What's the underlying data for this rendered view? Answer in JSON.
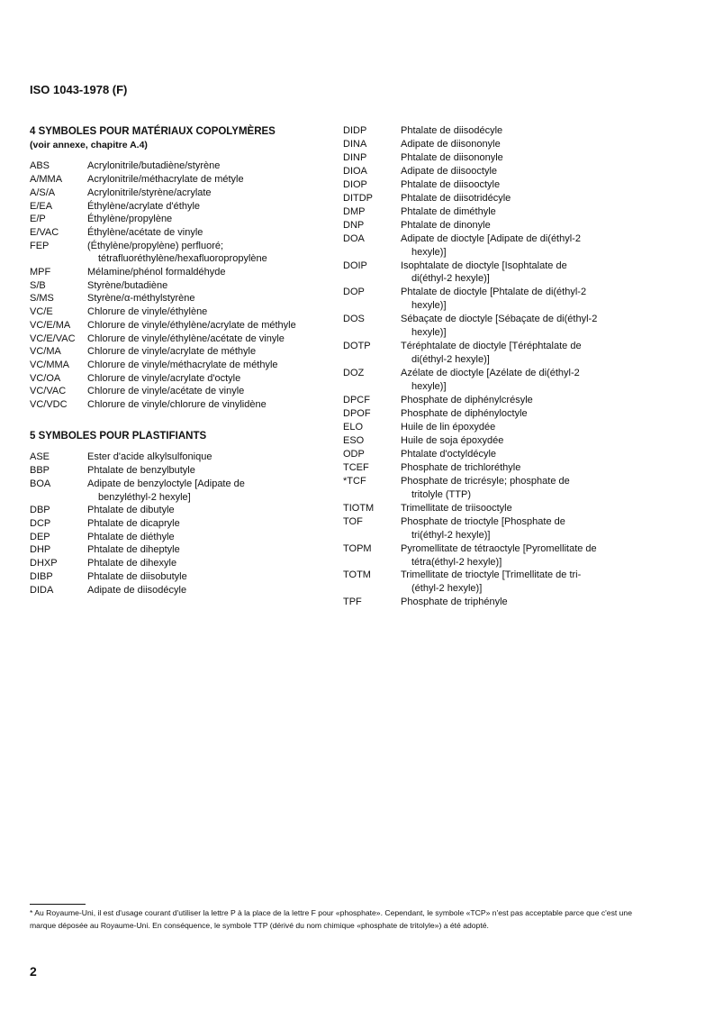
{
  "header": {
    "title": "ISO 1043-1978 (F)"
  },
  "section4": {
    "title": "4  SYMBOLES POUR MATÉRIAUX COPOLYMÈRES",
    "subtitle": "(voir annexe, chapitre A.4)",
    "entries": [
      {
        "sym": "ABS",
        "desc": "Acrylonitrile/butadiène/styrène"
      },
      {
        "sym": "A/MMA",
        "desc": "Acrylonitrile/méthacrylate de métyle"
      },
      {
        "sym": "A/S/A",
        "desc": "Acrylonitrile/styrène/acrylate"
      },
      {
        "sym": "E/EA",
        "desc": "Éthylène/acrylate d'éthyle"
      },
      {
        "sym": "E/P",
        "desc": "Éthylène/propylène"
      },
      {
        "sym": "E/VAC",
        "desc": "Éthylène/acétate de vinyle"
      },
      {
        "sym": "FEP",
        "desc": "(Éthylène/propylène) perfluoré;",
        "cont": "tétrafluoréthylène/hexafluoropropylène"
      },
      {
        "sym": "MPF",
        "desc": "Mélamine/phénol formaldéhyde"
      },
      {
        "sym": "S/B",
        "desc": "Styrène/butadiène"
      },
      {
        "sym": "S/MS",
        "desc": "Styrène/α-méthylstyrène"
      },
      {
        "sym": "VC/E",
        "desc": "Chlorure de vinyle/éthylène"
      },
      {
        "sym": "VC/E/MA",
        "desc": "Chlorure de vinyle/éthylène/acrylate de méthyle"
      },
      {
        "sym": "VC/E/VAC",
        "desc": "Chlorure de vinyle/éthylène/acétate de vinyle"
      },
      {
        "sym": "VC/MA",
        "desc": "Chlorure de vinyle/acrylate de méthyle"
      },
      {
        "sym": "VC/MMA",
        "desc": "Chlorure de vinyle/méthacrylate de méthyle"
      },
      {
        "sym": "VC/OA",
        "desc": "Chlorure de vinyle/acrylate d'octyle"
      },
      {
        "sym": "VC/VAC",
        "desc": "Chlorure de vinyle/acétate de vinyle"
      },
      {
        "sym": "VC/VDC",
        "desc": "Chlorure de vinyle/chlorure de vinylidène"
      }
    ]
  },
  "section5": {
    "title": "5  SYMBOLES POUR PLASTIFIANTS",
    "entries": [
      {
        "sym": "ASE",
        "desc": "Ester d'acide alkylsulfonique"
      },
      {
        "sym": "BBP",
        "desc": "Phtalate de benzylbutyle"
      },
      {
        "sym": "BOA",
        "desc": "Adipate de benzyloctyle [Adipate de",
        "cont": "benzyléthyl-2 hexyle]"
      },
      {
        "sym": "DBP",
        "desc": "Phtalate de dibutyle"
      },
      {
        "sym": "DCP",
        "desc": "Phtalate de dicapryle"
      },
      {
        "sym": "DEP",
        "desc": "Phtalate de diéthyle"
      },
      {
        "sym": "DHP",
        "desc": "Phtalate de diheptyle"
      },
      {
        "sym": "DHXP",
        "desc": "Phtalate de dihexyle"
      },
      {
        "sym": "DIBP",
        "desc": "Phtalate de diisobutyle"
      },
      {
        "sym": "DIDA",
        "desc": "Adipate de diisodécyle"
      },
      {
        "sym": "DIDP",
        "desc": "Phtalate de diisodécyle"
      },
      {
        "sym": "DINA",
        "desc": "Adipate de diisononyle"
      },
      {
        "sym": "DINP",
        "desc": "Phtalate de diisononyle"
      },
      {
        "sym": "DIOA",
        "desc": "Adipate de diisooctyle"
      },
      {
        "sym": "DIOP",
        "desc": "Phtalate de diisooctyle"
      },
      {
        "sym": "DITDP",
        "desc": "Phtalate de diisotridécyle"
      },
      {
        "sym": "DMP",
        "desc": "Phtalate de diméthyle"
      },
      {
        "sym": "DNP",
        "desc": "Phtalate de dinonyle"
      },
      {
        "sym": "DOA",
        "desc": "Adipate de dioctyle [Adipate de di(éthyl-2",
        "cont": "hexyle)]"
      },
      {
        "sym": "DOIP",
        "desc": "Isophtalate de dioctyle [Isophtalate de",
        "cont": "di(éthyl-2 hexyle)]"
      },
      {
        "sym": "DOP",
        "desc": "Phtalate de dioctyle [Phtalate de di(éthyl-2",
        "cont": "hexyle)]"
      },
      {
        "sym": "DOS",
        "desc": "Sébaçate de dioctyle [Sébaçate de di(éthyl-2",
        "cont": "hexyle)]"
      },
      {
        "sym": "DOTP",
        "desc": "Téréphtalate de dioctyle [Téréphtalate de",
        "cont": "di(éthyl-2 hexyle)]"
      },
      {
        "sym": "DOZ",
        "desc": "Azélate de dioctyle [Azélate de di(éthyl-2",
        "cont": "hexyle)]"
      },
      {
        "sym": "DPCF",
        "desc": "Phosphate de diphénylcrésyle"
      },
      {
        "sym": "DPOF",
        "desc": "Phosphate de diphényloctyle"
      },
      {
        "sym": "ELO",
        "desc": "Huile de lin époxydée"
      },
      {
        "sym": "ESO",
        "desc": "Huile de soja époxydée"
      },
      {
        "sym": "ODP",
        "desc": "Phtalate d'octyldécyle"
      },
      {
        "sym": "TCEF",
        "desc": "Phosphate de trichloréthyle"
      },
      {
        "sym": "*TCF",
        "desc": "Phosphate de tricrésyle; phosphate de",
        "cont": "tritolyle (TTP)"
      },
      {
        "sym": "TIOTM",
        "desc": "Trimellitate de triisooctyle"
      },
      {
        "sym": "TOF",
        "desc": "Phosphate de trioctyle [Phosphate de",
        "cont": "tri(éthyl-2 hexyle)]"
      },
      {
        "sym": "TOPM",
        "desc": "Pyromellitate de tétraoctyle [Pyromellitate de",
        "cont": "tétra(éthyl-2 hexyle)]"
      },
      {
        "sym": "TOTM",
        "desc": "Trimellitate de trioctyle [Trimellitate de tri-",
        "cont": "(éthyl-2 hexyle)]"
      },
      {
        "sym": "TPF",
        "desc": "Phosphate de triphényle"
      }
    ]
  },
  "footnote": "*  Au Royaume-Uni, il est d'usage courant d'utiliser la lettre P à la place de la lettre F pour «phosphate». Cependant, le symbole «TCP» n'est pas acceptable parce que c'est une marque déposée au Royaume-Uni. En conséquence, le symbole TTP (dérivé du nom chimique «phosphate de tritolyle») a été adopté.",
  "page_number": "2"
}
